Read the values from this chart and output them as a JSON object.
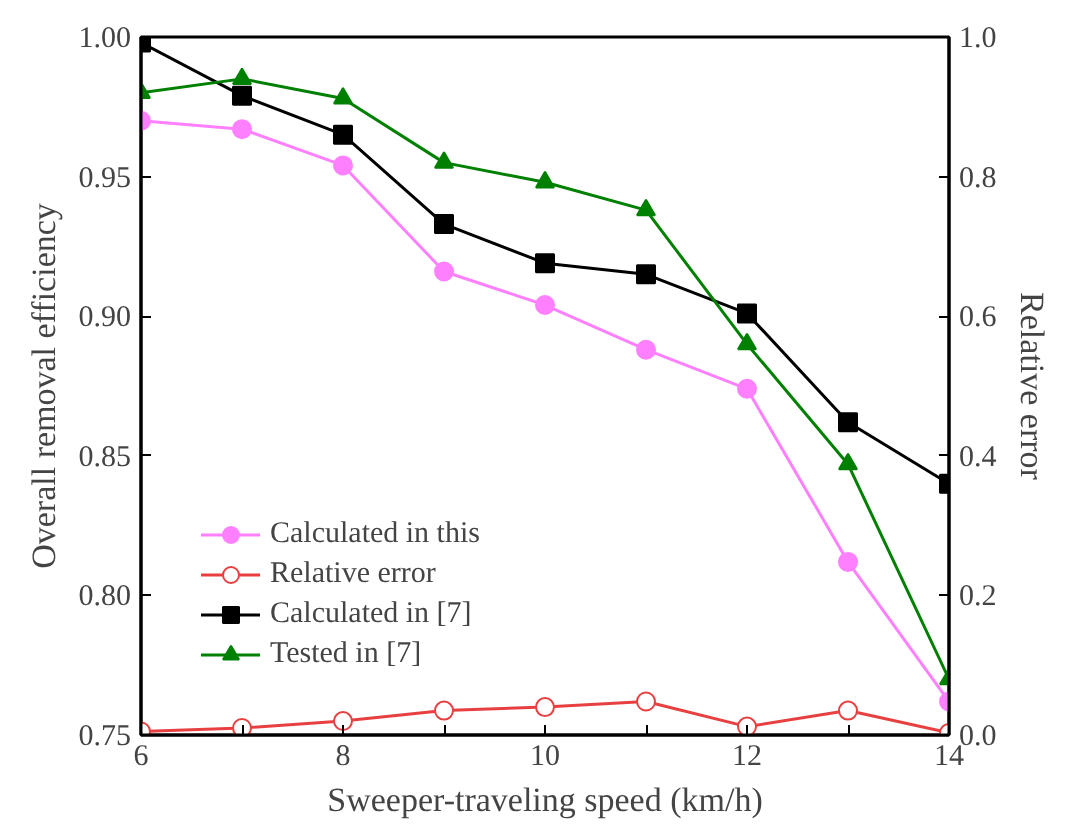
{
  "chart_data": {
    "type": "line",
    "xlabel": "Sweeper-traveling speed (km/h)",
    "ylabel": "Overall removal efficiency",
    "y2label": "Relative error",
    "x": [
      6,
      7,
      8,
      9,
      10,
      11,
      12,
      13,
      14
    ],
    "series": [
      {
        "name": "Calculated in this",
        "color": "#ff80ff",
        "marker": "circle",
        "values": [
          0.97,
          0.967,
          0.954,
          0.916,
          0.904,
          0.888,
          0.874,
          0.812,
          0.762
        ]
      },
      {
        "name": "Relative error",
        "color": "#e84040",
        "marker": "circle",
        "axis": "y2",
        "values": [
          0.005,
          0.01,
          0.02,
          0.035,
          0.04,
          0.048,
          0.012,
          0.035,
          0.003
        ]
      },
      {
        "name": "Calculated in [7]",
        "color": "#000000",
        "marker": "square",
        "values": [
          0.998,
          0.979,
          0.965,
          0.933,
          0.919,
          0.915,
          0.901,
          0.862,
          0.84
        ]
      },
      {
        "name": "Tested in [7]",
        "color": "#008000",
        "marker": "triangle",
        "values": [
          0.98,
          0.985,
          0.978,
          0.955,
          0.948,
          0.938,
          0.89,
          0.847,
          0.77
        ]
      }
    ],
    "xlim": [
      6,
      14
    ],
    "xticks": [
      6,
      {
        "value": 7,
        "label": null
      },
      8,
      {
        "value": 9,
        "label": null
      },
      10,
      {
        "value": 11,
        "label": null
      },
      12,
      {
        "value": 13,
        "label": null
      },
      14
    ],
    "ylim": [
      0.75,
      1.0
    ],
    "yticks": [
      0.75,
      {
        "value": 0.8,
        "label": "0.80"
      },
      0.85,
      {
        "value": 0.9,
        "label": "0.90"
      },
      0.95,
      {
        "value": 1.0,
        "label": "1.00"
      }
    ],
    "y2lim": [
      0,
      1
    ],
    "y2ticks": [
      {
        "value": 0,
        "label": "0.0"
      },
      0.2,
      0.4,
      0.6,
      0.8,
      {
        "value": 1,
        "label": "1.0"
      }
    ],
    "grid": false,
    "legend": "bottom left",
    "line_style": "solid"
  }
}
